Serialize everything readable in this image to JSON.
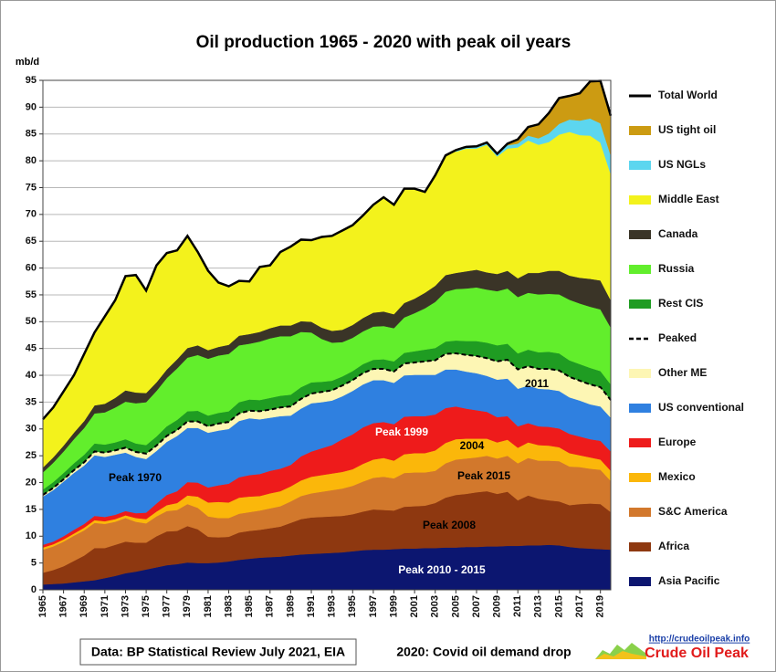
{
  "chart_data": {
    "type": "area",
    "title": "Oil production 1965 - 2020 with peak oil years",
    "y_label": "mb/d",
    "x": [
      1965,
      1966,
      1967,
      1968,
      1969,
      1970,
      1971,
      1972,
      1973,
      1974,
      1975,
      1976,
      1977,
      1978,
      1979,
      1980,
      1981,
      1982,
      1983,
      1984,
      1985,
      1986,
      1987,
      1988,
      1989,
      1990,
      1991,
      1992,
      1993,
      1994,
      1995,
      1996,
      1997,
      1998,
      1999,
      2000,
      2001,
      2002,
      2003,
      2004,
      2005,
      2006,
      2007,
      2008,
      2009,
      2010,
      2011,
      2012,
      2013,
      2014,
      2015,
      2016,
      2017,
      2018,
      2019,
      2020
    ],
    "xlim": [
      1965,
      2020
    ],
    "xticks": [
      1965,
      1967,
      1969,
      1971,
      1973,
      1975,
      1977,
      1979,
      1981,
      1983,
      1985,
      1987,
      1989,
      1991,
      1993,
      1995,
      1997,
      1999,
      2001,
      2003,
      2005,
      2007,
      2009,
      2011,
      2013,
      2015,
      2017,
      2019
    ],
    "ylim": [
      0,
      95
    ],
    "yticks": [
      0,
      5,
      10,
      15,
      20,
      25,
      30,
      35,
      40,
      45,
      50,
      55,
      60,
      65,
      70,
      75,
      80,
      85,
      90,
      95
    ],
    "grid": true,
    "series": [
      {
        "name": "Asia Pacific",
        "color": "#0c1670",
        "values": [
          1.0,
          1.1,
          1.2,
          1.4,
          1.6,
          1.8,
          2.2,
          2.6,
          3.1,
          3.4,
          3.8,
          4.2,
          4.6,
          4.8,
          5.1,
          5.0,
          5.0,
          5.1,
          5.3,
          5.6,
          5.8,
          6.0,
          6.1,
          6.2,
          6.4,
          6.6,
          6.7,
          6.8,
          6.9,
          7.0,
          7.2,
          7.4,
          7.5,
          7.5,
          7.6,
          7.7,
          7.7,
          7.8,
          7.8,
          7.9,
          7.9,
          8.0,
          8.0,
          8.1,
          8.1,
          8.2,
          8.2,
          8.3,
          8.3,
          8.4,
          8.3,
          8.0,
          7.8,
          7.7,
          7.6,
          7.5
        ]
      },
      {
        "name": "Africa",
        "color": "#8e3810",
        "values": [
          2.2,
          2.6,
          3.2,
          4.0,
          4.8,
          6.0,
          5.6,
          5.8,
          5.9,
          5.4,
          5.0,
          5.8,
          6.3,
          6.2,
          6.8,
          6.3,
          4.9,
          4.7,
          4.6,
          5.1,
          5.2,
          5.2,
          5.4,
          5.6,
          6.1,
          6.6,
          6.8,
          6.8,
          6.8,
          6.8,
          6.9,
          7.2,
          7.5,
          7.4,
          7.2,
          7.8,
          7.9,
          7.9,
          8.4,
          9.3,
          9.8,
          9.9,
          10.2,
          10.3,
          9.8,
          10.1,
          8.5,
          9.3,
          8.7,
          8.3,
          8.2,
          7.8,
          8.2,
          8.4,
          8.4,
          7.0
        ]
      },
      {
        "name": "S&C America",
        "color": "#d2782c",
        "values": [
          4.3,
          4.4,
          4.6,
          4.7,
          4.7,
          4.7,
          4.5,
          4.3,
          4.4,
          3.9,
          3.6,
          3.7,
          3.8,
          3.9,
          4.1,
          4.0,
          3.8,
          3.6,
          3.5,
          3.5,
          3.5,
          3.6,
          3.7,
          3.8,
          4.0,
          4.3,
          4.5,
          4.7,
          4.9,
          5.1,
          5.3,
          5.6,
          5.9,
          6.2,
          6.0,
          6.3,
          6.3,
          6.2,
          6.0,
          6.4,
          6.6,
          6.6,
          6.5,
          6.6,
          6.6,
          6.7,
          6.9,
          7.0,
          7.1,
          7.4,
          7.5,
          7.2,
          6.9,
          6.5,
          6.4,
          5.8
        ]
      },
      {
        "name": "Mexico",
        "color": "#fbb70a",
        "values": [
          0.4,
          0.4,
          0.4,
          0.4,
          0.5,
          0.5,
          0.5,
          0.5,
          0.5,
          0.7,
          0.8,
          0.9,
          1.1,
          1.3,
          1.6,
          2.1,
          2.6,
          3.0,
          2.9,
          3.0,
          2.9,
          2.7,
          2.8,
          2.8,
          2.8,
          2.9,
          3.1,
          3.1,
          3.1,
          3.1,
          3.1,
          3.3,
          3.4,
          3.5,
          3.3,
          3.5,
          3.6,
          3.6,
          3.8,
          3.8,
          3.8,
          3.7,
          3.5,
          3.2,
          3.0,
          3.0,
          2.9,
          2.9,
          2.9,
          2.8,
          2.6,
          2.5,
          2.2,
          2.1,
          1.9,
          1.9
        ]
      },
      {
        "name": "Europe",
        "color": "#ee1b1b",
        "values": [
          0.5,
          0.5,
          0.6,
          0.7,
          0.7,
          0.8,
          0.8,
          0.8,
          0.8,
          0.9,
          1.2,
          1.5,
          1.9,
          2.2,
          2.5,
          2.6,
          2.8,
          3.1,
          3.5,
          3.8,
          4.0,
          4.1,
          4.2,
          4.2,
          4.0,
          4.5,
          4.7,
          5.0,
          5.3,
          6.1,
          6.5,
          6.8,
          6.8,
          6.7,
          6.8,
          7.0,
          6.9,
          6.9,
          6.7,
          6.5,
          6.1,
          5.6,
          5.3,
          5.0,
          4.7,
          4.4,
          4.0,
          3.6,
          3.5,
          3.5,
          3.5,
          3.6,
          3.5,
          3.4,
          3.5,
          3.6
        ]
      },
      {
        "name": "US conventional",
        "color": "#2f80e0",
        "values": [
          9.0,
          9.6,
          10.2,
          10.6,
          10.9,
          11.3,
          11.2,
          11.2,
          10.9,
          10.5,
          10.0,
          9.8,
          9.9,
          10.3,
          10.1,
          10.2,
          10.2,
          10.2,
          10.2,
          10.5,
          10.6,
          10.2,
          9.9,
          9.8,
          9.2,
          8.9,
          9.0,
          8.6,
          8.3,
          8.0,
          8.1,
          8.0,
          8.0,
          7.8,
          7.7,
          7.7,
          7.7,
          7.7,
          7.4,
          7.2,
          6.9,
          6.9,
          6.9,
          6.7,
          7.0,
          7.0,
          7.0,
          7.0,
          7.0,
          7.0,
          7.0,
          6.8,
          6.7,
          6.5,
          6.4,
          6.3
        ]
      },
      {
        "name": "Other ME",
        "color": "#fdf6b4",
        "values": [
          0.3,
          0.4,
          0.4,
          0.5,
          0.6,
          0.7,
          0.8,
          0.8,
          0.9,
          0.9,
          1.0,
          1.0,
          1.1,
          1.1,
          1.2,
          1.2,
          1.2,
          1.3,
          1.3,
          1.4,
          1.4,
          1.5,
          1.5,
          1.6,
          1.7,
          1.8,
          1.8,
          1.9,
          1.9,
          2.0,
          2.0,
          2.1,
          2.1,
          2.1,
          2.1,
          2.2,
          2.3,
          2.5,
          2.7,
          2.9,
          3.0,
          3.1,
          3.2,
          3.3,
          3.4,
          3.5,
          3.6,
          3.6,
          3.7,
          3.8,
          3.8,
          3.8,
          3.7,
          3.7,
          3.6,
          3.3
        ]
      },
      {
        "name": "Peaked",
        "color": "#000000",
        "dash": true
      },
      {
        "name": "Rest CIS",
        "color": "#1f9c22",
        "values": [
          1.0,
          1.1,
          1.2,
          1.3,
          1.4,
          1.5,
          1.5,
          1.5,
          1.6,
          1.6,
          1.6,
          1.7,
          1.8,
          1.9,
          1.9,
          2.0,
          2.0,
          2.0,
          2.0,
          2.1,
          2.1,
          2.1,
          2.2,
          2.2,
          2.2,
          2.2,
          2.1,
          1.9,
          1.8,
          1.7,
          1.7,
          1.7,
          1.7,
          1.8,
          1.9,
          2.0,
          2.1,
          2.2,
          2.3,
          2.3,
          2.4,
          2.6,
          2.8,
          2.9,
          3.0,
          3.0,
          3.0,
          3.1,
          3.1,
          3.2,
          3.2,
          3.1,
          3.1,
          3.1,
          3.0,
          2.9
        ]
      },
      {
        "name": "Russia",
        "color": "#62ee2c",
        "values": [
          3.2,
          3.6,
          4.0,
          4.5,
          5.0,
          5.6,
          6.0,
          6.5,
          7.0,
          7.5,
          8.0,
          8.5,
          9.0,
          9.6,
          10.0,
          10.4,
          10.6,
          10.7,
          10.7,
          10.6,
          10.4,
          10.9,
          11.1,
          11.1,
          10.9,
          10.3,
          9.3,
          8.0,
          7.1,
          6.4,
          6.2,
          6.1,
          6.2,
          6.2,
          6.2,
          6.6,
          7.1,
          7.7,
          8.6,
          9.3,
          9.6,
          9.8,
          10.0,
          9.9,
          10.1,
          10.3,
          10.5,
          10.6,
          10.8,
          10.8,
          11.0,
          11.3,
          11.3,
          11.4,
          11.5,
          10.6
        ]
      },
      {
        "name": "Canada",
        "color": "#3a3427",
        "values": [
          0.9,
          1.0,
          1.1,
          1.2,
          1.3,
          1.5,
          1.6,
          1.8,
          2.1,
          2.0,
          1.7,
          1.6,
          1.6,
          1.7,
          1.8,
          1.8,
          1.6,
          1.6,
          1.7,
          1.8,
          1.8,
          1.8,
          1.9,
          2.0,
          2.0,
          2.0,
          2.0,
          2.1,
          2.2,
          2.3,
          2.4,
          2.5,
          2.6,
          2.7,
          2.6,
          2.7,
          2.7,
          2.9,
          3.0,
          3.1,
          3.0,
          3.2,
          3.3,
          3.2,
          3.2,
          3.3,
          3.5,
          3.7,
          4.0,
          4.3,
          4.4,
          4.5,
          4.8,
          5.2,
          5.4,
          5.1
        ]
      },
      {
        "name": "Middle East",
        "color": "#f3f21c",
        "values": [
          9.0,
          9.3,
          10.1,
          10.7,
          12.5,
          13.6,
          16.3,
          18.2,
          21.3,
          21.9,
          19.1,
          21.8,
          21.7,
          20.3,
          20.9,
          17.4,
          14.8,
          12.0,
          10.9,
          10.2,
          9.8,
          12.1,
          11.7,
          13.7,
          14.7,
          15.2,
          15.2,
          16.9,
          17.7,
          18.5,
          18.6,
          19.1,
          20.1,
          21.3,
          20.4,
          21.3,
          20.5,
          18.8,
          20.6,
          22.3,
          22.6,
          22.9,
          22.6,
          23.8,
          21.9,
          22.8,
          24.4,
          24.7,
          23.9,
          24.0,
          25.4,
          26.8,
          26.6,
          26.7,
          25.7,
          23.5
        ]
      },
      {
        "name": "US NGLs",
        "color": "#5cd6ef",
        "values": [
          null,
          null,
          null,
          null,
          null,
          null,
          null,
          null,
          null,
          null,
          null,
          null,
          null,
          null,
          null,
          null,
          null,
          null,
          null,
          null,
          null,
          null,
          null,
          null,
          null,
          null,
          null,
          null,
          null,
          null,
          null,
          null,
          null,
          null,
          null,
          null,
          null,
          null,
          null,
          null,
          0.3,
          0.3,
          0.4,
          0.4,
          0.5,
          0.6,
          0.7,
          0.9,
          1.2,
          1.6,
          2.0,
          2.3,
          2.7,
          3.2,
          3.6,
          3.5
        ]
      },
      {
        "name": "US tight oil",
        "color": "#cc9b12",
        "values": [
          null,
          null,
          null,
          null,
          null,
          null,
          null,
          null,
          null,
          null,
          null,
          null,
          null,
          null,
          null,
          null,
          null,
          null,
          null,
          null,
          null,
          null,
          null,
          null,
          null,
          null,
          null,
          null,
          null,
          null,
          null,
          null,
          null,
          null,
          null,
          null,
          null,
          null,
          null,
          null,
          null,
          null,
          null,
          null,
          null,
          0.3,
          0.8,
          1.6,
          2.6,
          3.8,
          4.8,
          4.4,
          5.1,
          6.9,
          7.9,
          7.4
        ]
      },
      {
        "name": "Total World",
        "type": "line",
        "color": "#000000",
        "values": [
          31.8,
          34,
          37,
          40,
          44,
          48,
          51,
          54,
          58.5,
          58.7,
          55.8,
          60.5,
          62.8,
          63.3,
          66,
          63,
          59.5,
          57.3,
          56.6,
          57.6,
          57.5,
          60.2,
          60.5,
          63,
          64,
          65.3,
          65.2,
          65.8,
          66,
          67,
          68,
          69.8,
          71.8,
          73.2,
          71.8,
          74.8,
          74.8,
          74.2,
          77.3,
          81,
          82,
          82.6,
          82.7,
          83.4,
          81.3,
          83.2,
          84,
          86.3,
          86.8,
          88.9,
          91.7,
          92.1,
          92.6,
          94.8,
          94.9,
          88.4
        ]
      }
    ],
    "annotations": [
      "Peak 1970",
      "Peak 1999",
      "2004",
      "Peak 2015",
      "2011",
      "Peak 2008",
      "Peak 2010 - 2015"
    ]
  },
  "footer": {
    "source": "Data: BP Statistical Review July 2021, EIA",
    "note": "2020: Covid oil demand drop",
    "url": "http://crudeoilpeak.info",
    "brand": "Crude Oil Peak"
  }
}
